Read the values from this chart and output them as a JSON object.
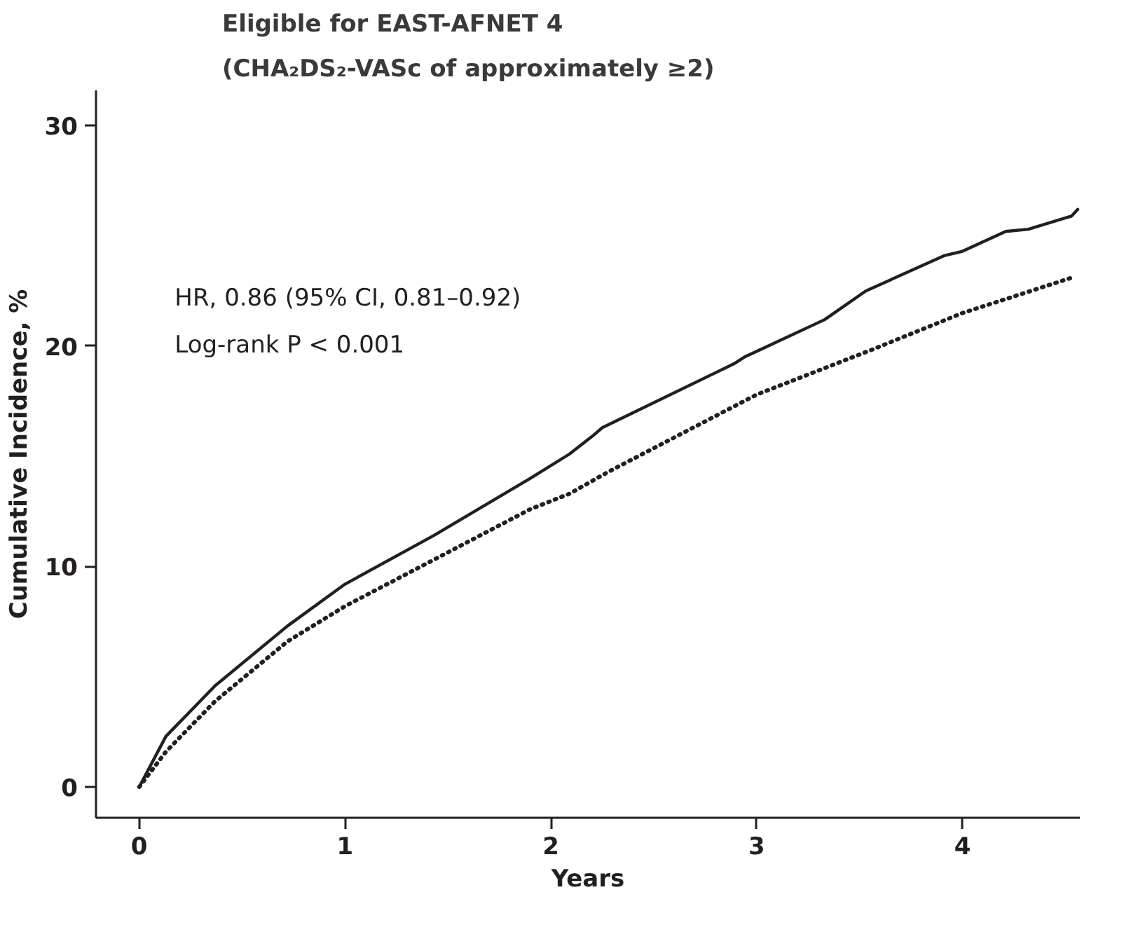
{
  "chart_data": {
    "type": "line",
    "title": "Eligible for  EAST-AFNET 4",
    "subtitle": "(CHA₂DS₂-VASc of approximately ≥2)",
    "xlabel": "Years",
    "ylabel": "Cumulative Incidence, %",
    "annotations": [
      "HR, 0.86 (95% CI, 0.81–0.92)",
      "Log-rank P < 0.001"
    ],
    "xlim": [
      -0.21,
      4.57
    ],
    "ylim": [
      -1.4,
      31.6
    ],
    "xticks": [
      0,
      1,
      2,
      3,
      4
    ],
    "yticks": [
      0,
      10,
      20,
      30
    ],
    "grid": false,
    "series": [
      {
        "color": "#231f20",
        "line_style": "solid",
        "x": [
          0,
          0.13,
          0.37,
          0.72,
          1.0,
          1.43,
          1.9,
          2.09,
          2.2,
          2.25,
          2.89,
          2.94,
          3.33,
          3.53,
          3.91,
          4.0,
          4.21,
          4.32,
          4.53,
          4.56
        ],
        "values": [
          0,
          2.3,
          4.6,
          7.3,
          9.2,
          11.4,
          14.0,
          15.1,
          15.9,
          16.3,
          19.2,
          19.5,
          21.2,
          22.5,
          24.1,
          24.3,
          25.2,
          25.3,
          25.9,
          26.2
        ]
      },
      {
        "color": "#231f20",
        "line_style": "dotted",
        "x": [
          0,
          0.13,
          0.37,
          0.72,
          1.0,
          1.43,
          1.9,
          2.09,
          2.28,
          3.0,
          3.55,
          4.0,
          4.53
        ],
        "values": [
          0,
          1.6,
          3.9,
          6.6,
          8.2,
          10.3,
          12.6,
          13.3,
          14.3,
          17.8,
          19.8,
          21.5,
          23.1
        ]
      }
    ]
  }
}
